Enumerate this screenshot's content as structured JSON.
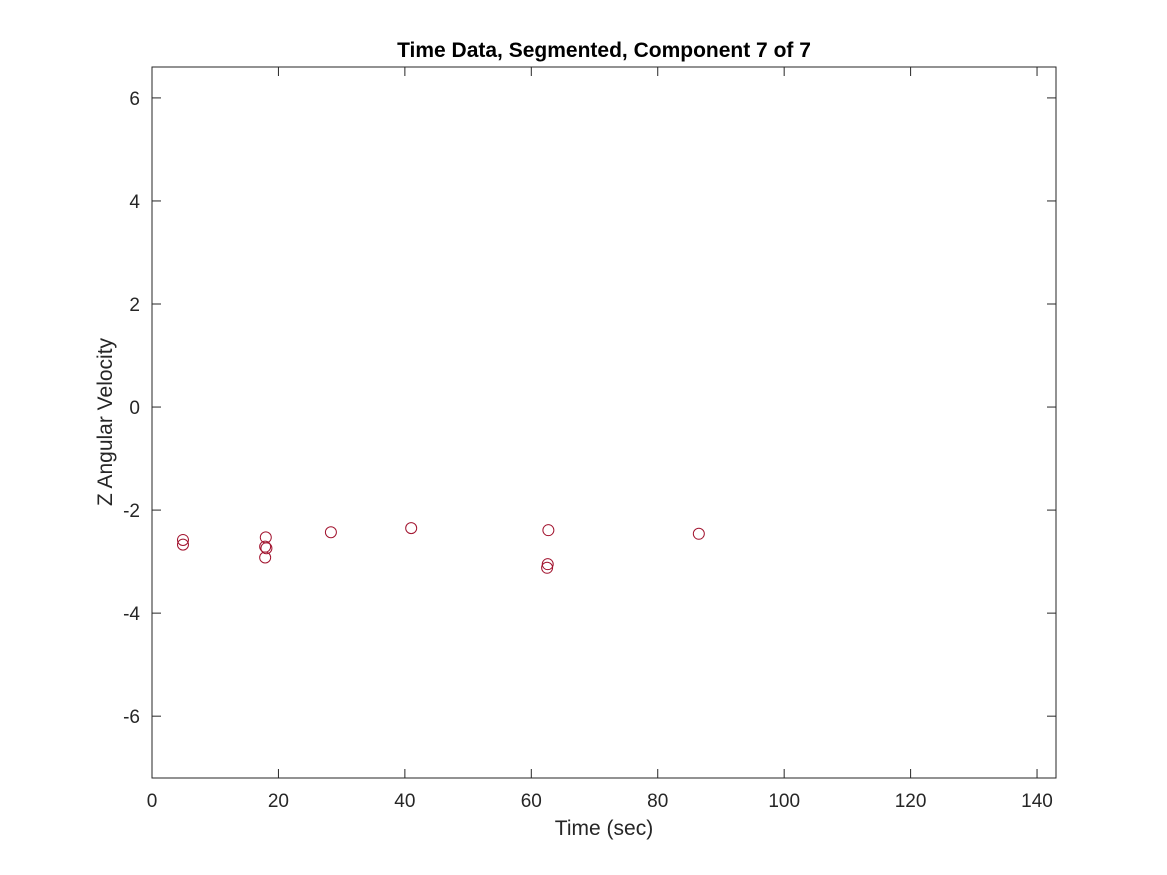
{
  "chart_data": {
    "type": "scatter",
    "title": "Time Data, Segmented, Component 7 of 7",
    "xlabel": "Time (sec)",
    "ylabel": "Z Angular Velocity",
    "xlim": [
      0,
      143
    ],
    "ylim": [
      -7.2,
      6.6
    ],
    "xticks": [
      0,
      20,
      40,
      60,
      80,
      100,
      120,
      140
    ],
    "xtick_labels": [
      "0",
      "20",
      "40",
      "60",
      "80",
      "100",
      "120",
      "140"
    ],
    "yticks": [
      6,
      4,
      2,
      0,
      -2,
      -4,
      -6
    ],
    "ytick_labels": [
      "6",
      "4",
      "2",
      "0",
      "-2",
      "-4",
      "-6"
    ],
    "grid": false,
    "marker": "open-circle",
    "marker_color": "#a2142f",
    "axis_color": "#262626",
    "series": [
      {
        "points": [
          {
            "x": 4.9,
            "y": -2.58
          },
          {
            "x": 4.9,
            "y": -2.67
          },
          {
            "x": 18.0,
            "y": -2.53
          },
          {
            "x": 17.9,
            "y": -2.71
          },
          {
            "x": 18.1,
            "y": -2.74
          },
          {
            "x": 17.9,
            "y": -2.92
          },
          {
            "x": 28.3,
            "y": -2.43
          },
          {
            "x": 41.0,
            "y": -2.35
          },
          {
            "x": 62.7,
            "y": -2.39
          },
          {
            "x": 62.6,
            "y": -3.05
          },
          {
            "x": 62.5,
            "y": -3.12
          },
          {
            "x": 86.5,
            "y": -2.46
          }
        ]
      }
    ]
  }
}
